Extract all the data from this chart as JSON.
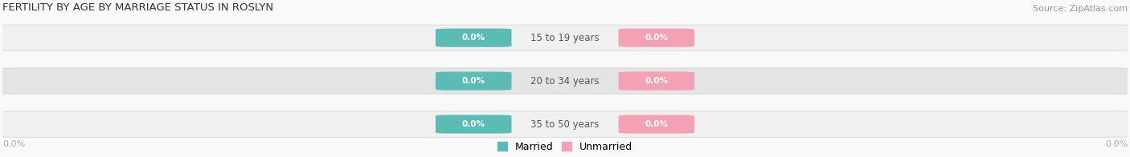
{
  "title": "FERTILITY BY AGE BY MARRIAGE STATUS IN ROSLYN",
  "source": "Source: ZipAtlas.com",
  "age_groups": [
    "15 to 19 years",
    "20 to 34 years",
    "35 to 50 years"
  ],
  "married_values": [
    0.0,
    0.0,
    0.0
  ],
  "unmarried_values": [
    0.0,
    0.0,
    0.0
  ],
  "married_color": "#5bbcb5",
  "unmarried_color": "#f4a0b5",
  "bar_bg_light": "#f0f0f0",
  "bar_bg_dark": "#e4e4e4",
  "title_fontsize": 9.5,
  "source_fontsize": 8,
  "label_fontsize": 8.5,
  "value_fontsize": 7.5,
  "category_label_color": "#555555",
  "axis_label_color": "#aaaaaa",
  "legend_married": "Married",
  "legend_unmarried": "Unmarried",
  "left_axis_label": "0.0%",
  "right_axis_label": "0.0%",
  "bg_color": "#f9f9f9"
}
